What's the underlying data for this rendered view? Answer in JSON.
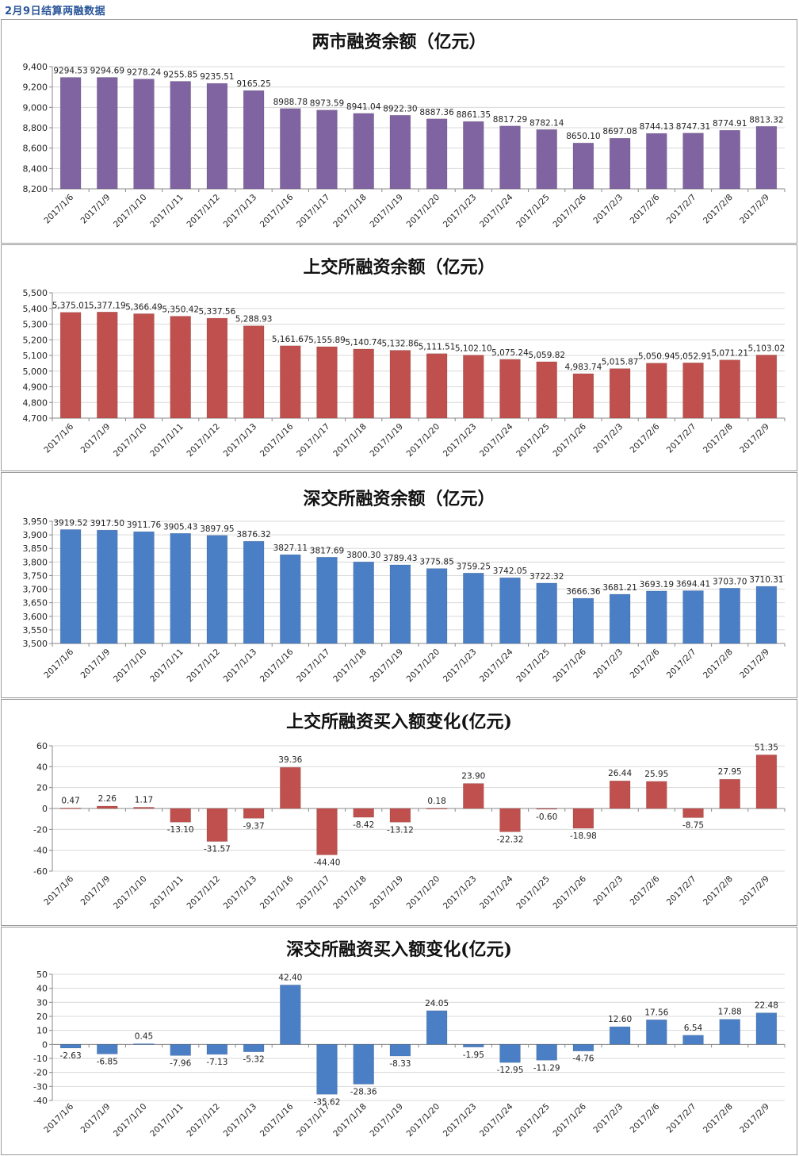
{
  "page": {
    "title": "2月9日结算两融数据"
  },
  "dates": [
    "2017/1/6",
    "2017/1/9",
    "2017/1/10",
    "2017/1/11",
    "2017/1/12",
    "2017/1/13",
    "2017/1/16",
    "2017/1/17",
    "2017/1/18",
    "2017/1/19",
    "2017/1/20",
    "2017/1/23",
    "2017/1/24",
    "2017/1/25",
    "2017/1/26",
    "2017/2/3",
    "2017/2/6",
    "2017/2/7",
    "2017/2/8",
    "2017/2/9"
  ],
  "chart_data": [
    {
      "type": "bar",
      "title": "两市融资余额（亿元）",
      "color": "#8064a2",
      "ylim": [
        8200,
        9400
      ],
      "yticks": [
        "8,200",
        "8,400",
        "8,600",
        "8,800",
        "9,000",
        "9,200",
        "9,400"
      ],
      "ytick_values": [
        8200,
        8400,
        8600,
        8800,
        9000,
        9200,
        9400
      ],
      "values": [
        9294.53,
        9294.69,
        9278.24,
        9255.85,
        9235.51,
        9165.25,
        8988.78,
        8973.59,
        8941.04,
        8922.3,
        8887.36,
        8861.35,
        8817.29,
        8782.14,
        8650.1,
        8697.08,
        8744.13,
        8747.31,
        8774.91,
        8813.32
      ],
      "labels": [
        "9294.53",
        "9294.69",
        "9278.24",
        "9255.85",
        "9235.51",
        "9165.25",
        "8988.78",
        "8973.59",
        "8941.04",
        "8922.30",
        "8887.36",
        "8861.35",
        "8817.29",
        "8782.14",
        "8650.10",
        "8697.08",
        "8744.13",
        "8747.31",
        "8774.91",
        "8813.32"
      ]
    },
    {
      "type": "bar",
      "title": "上交所融资余额（亿元）",
      "color": "#c0504d",
      "ylim": [
        4700,
        5500
      ],
      "yticks": [
        "4,700",
        "4,800",
        "4,900",
        "5,000",
        "5,100",
        "5,200",
        "5,300",
        "5,400",
        "5,500"
      ],
      "ytick_values": [
        4700,
        4800,
        4900,
        5000,
        5100,
        5200,
        5300,
        5400,
        5500
      ],
      "values": [
        5375.01,
        5377.19,
        5366.49,
        5350.42,
        5337.56,
        5288.93,
        5161.67,
        5155.89,
        5140.74,
        5132.86,
        5111.51,
        5102.1,
        5075.24,
        5059.82,
        4983.74,
        5015.87,
        5050.94,
        5052.91,
        5071.21,
        5103.02
      ],
      "labels": [
        "5,375.01",
        "5,377.19",
        "5,366.49",
        "5,350.42",
        "5,337.56",
        "5,288.93",
        "5,161.67",
        "5,155.89",
        "5,140.74",
        "5,132.86",
        "5,111.51",
        "5,102.10",
        "5,075.24",
        "5,059.82",
        "4,983.74",
        "5,015.87",
        "5,050.94",
        "5,052.91",
        "5,071.21",
        "5,103.02"
      ]
    },
    {
      "type": "bar",
      "title": "深交所融资余额（亿元）",
      "color": "#4a7fc6",
      "ylim": [
        3500,
        3950
      ],
      "yticks": [
        "3,500",
        "3,550",
        "3,600",
        "3,650",
        "3,700",
        "3,750",
        "3,800",
        "3,850",
        "3,900",
        "3,950"
      ],
      "ytick_values": [
        3500,
        3550,
        3600,
        3650,
        3700,
        3750,
        3800,
        3850,
        3900,
        3950
      ],
      "values": [
        3919.52,
        3917.5,
        3911.76,
        3905.43,
        3897.95,
        3876.32,
        3827.11,
        3817.69,
        3800.3,
        3789.43,
        3775.85,
        3759.25,
        3742.05,
        3722.32,
        3666.36,
        3681.21,
        3693.19,
        3694.41,
        3703.7,
        3710.31
      ],
      "labels": [
        "3919.52",
        "3917.50",
        "3911.76",
        "3905.43",
        "3897.95",
        "3876.32",
        "3827.11",
        "3817.69",
        "3800.30",
        "3789.43",
        "3775.85",
        "3759.25",
        "3742.05",
        "3722.32",
        "3666.36",
        "3681.21",
        "3693.19",
        "3694.41",
        "3703.70",
        "3710.31"
      ]
    },
    {
      "type": "bar",
      "title": "上交所融资买入额变化(亿元)",
      "color": "#c0504d",
      "ylim": [
        -60,
        60
      ],
      "yticks": [
        "-60",
        "-40",
        "-20",
        "0",
        "20",
        "40",
        "60"
      ],
      "ytick_values": [
        -60,
        -40,
        -20,
        0,
        20,
        40,
        60
      ],
      "values": [
        0.47,
        2.26,
        1.17,
        -13.1,
        -31.57,
        -9.37,
        39.36,
        -44.4,
        -8.42,
        -13.12,
        0.18,
        23.9,
        -22.32,
        -0.6,
        -18.98,
        26.44,
        25.95,
        -8.75,
        27.95,
        51.35
      ],
      "labels": [
        "0.47",
        "2.26",
        "1.17",
        "-13.10",
        "-31.57",
        "-9.37",
        "39.36",
        "-44.40",
        "-8.42",
        "-13.12",
        "0.18",
        "23.90",
        "-22.32",
        "-0.60",
        "-18.98",
        "26.44",
        "25.95",
        "-8.75",
        "27.95",
        "51.35"
      ]
    },
    {
      "type": "bar",
      "title": "深交所融资买入额变化(亿元)",
      "color": "#4a7fc6",
      "ylim": [
        -40,
        50
      ],
      "yticks": [
        "-40",
        "-30",
        "-20",
        "-10",
        "0",
        "10",
        "20",
        "30",
        "40",
        "50"
      ],
      "ytick_values": [
        -40,
        -30,
        -20,
        -10,
        0,
        10,
        20,
        30,
        40,
        50
      ],
      "values": [
        -2.63,
        -6.85,
        0.45,
        -7.96,
        -7.13,
        -5.32,
        42.4,
        -35.62,
        -28.36,
        -8.33,
        24.05,
        -1.95,
        -12.95,
        -11.29,
        -4.76,
        12.6,
        17.56,
        6.54,
        17.88,
        22.48
      ],
      "labels": [
        "-2.63",
        "-6.85",
        "0.45",
        "-7.96",
        "-7.13",
        "-5.32",
        "42.40",
        "-35.62",
        "-28.36",
        "-8.33",
        "24.05",
        "-1.95",
        "-12.95",
        "-11.29",
        "-4.76",
        "12.60",
        "17.56",
        "6.54",
        "17.88",
        "22.48"
      ]
    }
  ]
}
